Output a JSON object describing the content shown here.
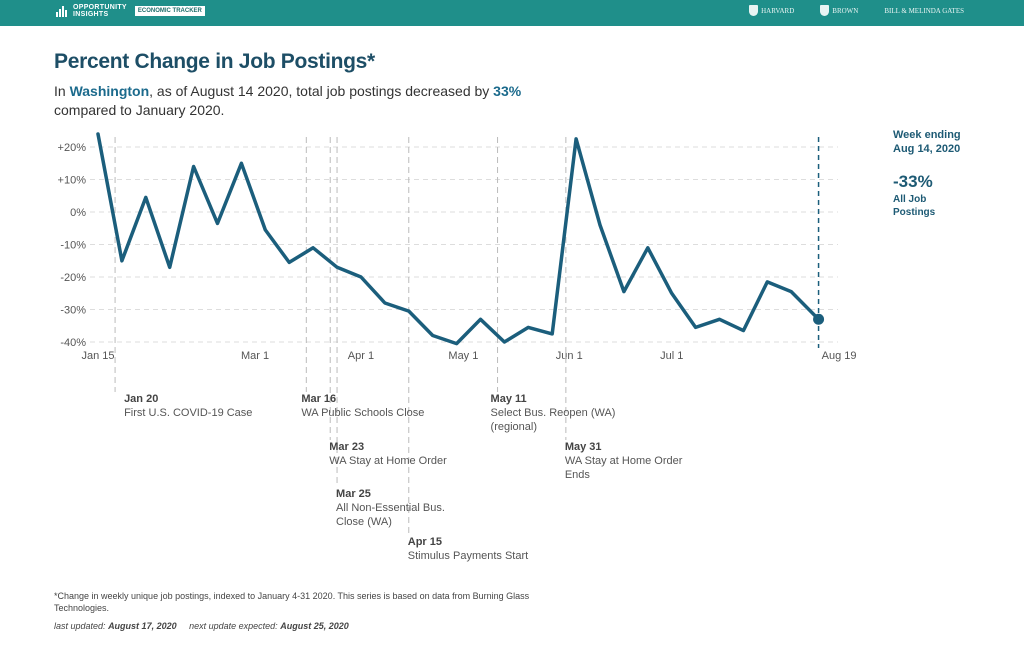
{
  "header": {
    "brand_line1": "OPPORTUNITY",
    "brand_line2": "INSIGHTS",
    "tracker_label": "ECONOMIC TRACKER",
    "partners": [
      "HARVARD",
      "BROWN",
      "BILL & MELINDA GATES"
    ]
  },
  "title": "Percent Change in Job Postings*",
  "subtitle": {
    "prefix": "In",
    "state": "Washington",
    "middle": ", as of August 14 2020, total job postings decreased by",
    "pct": "33%",
    "suffix": "compared to January 2020."
  },
  "side": {
    "date_label": "Week ending Aug 14, 2020",
    "value": "-33%",
    "value_label": "All Job Postings"
  },
  "colors": {
    "line": "#1b5e7c",
    "header": "#1f8f8a",
    "grid": "#dddddd",
    "event_line": "#bbbbbb"
  },
  "chart_data": {
    "type": "line",
    "title": "Percent Change in Job Postings*",
    "xlabel": "",
    "ylabel": "",
    "ylim": [
      -40,
      20
    ],
    "yticks": [
      20,
      10,
      0,
      -10,
      -20,
      -30,
      -40
    ],
    "ytick_labels": [
      "+20%",
      "+10%",
      "0%",
      "-10%",
      "-20%",
      "-30%",
      "-40%"
    ],
    "xtick_labels": [
      {
        "day": 0,
        "label": "Jan 15"
      },
      {
        "day": 46,
        "label": "Mar 1"
      },
      {
        "day": 77,
        "label": "Apr 1"
      },
      {
        "day": 107,
        "label": "May 1"
      },
      {
        "day": 138,
        "label": "Jun 1"
      },
      {
        "day": 168,
        "label": "Jul 1"
      },
      {
        "day": 217,
        "label": "Aug 19"
      }
    ],
    "series": [
      {
        "name": "All Job Postings",
        "x_days": [
          0,
          7,
          14,
          21,
          28,
          35,
          42,
          49,
          56,
          63,
          70,
          77,
          84,
          91,
          98,
          105,
          112,
          119,
          126,
          133,
          140,
          147,
          154,
          161,
          168,
          175,
          182,
          189,
          196,
          203,
          211
        ],
        "values": [
          24,
          -15,
          4.5,
          -17,
          14,
          -3.5,
          15,
          -5.5,
          -15.5,
          -11,
          -17,
          -20,
          -28,
          -30.5,
          -38,
          -40.5,
          -33,
          -40,
          -35.5,
          -37.5,
          22.5,
          -4,
          -24.5,
          -11,
          -25,
          -35.5,
          -33,
          -36.5,
          -21.5,
          -24.5,
          -33
        ]
      }
    ],
    "end_marker": {
      "day": 211,
      "value": -33
    },
    "events": [
      {
        "day": 5,
        "date": "Jan 20",
        "label": "First U.S. COVID-19 Case"
      },
      {
        "day": 61,
        "date": "Mar 16",
        "label": "WA Public Schools Close"
      },
      {
        "day": 68,
        "date": "Mar 23",
        "label": "WA Stay at Home Order"
      },
      {
        "day": 70,
        "date": "Mar 25",
        "label": "All Non-Essential Bus. Close (WA)"
      },
      {
        "day": 91,
        "date": "Apr 15",
        "label": "Stimulus Payments Start"
      },
      {
        "day": 117,
        "date": "May 11",
        "label": "Select Bus. Reopen (WA) (regional)"
      },
      {
        "day": 137,
        "date": "May 31",
        "label": "WA Stay at Home Order Ends"
      }
    ]
  },
  "footnote": "*Change in weekly unique job postings, indexed to January 4-31 2020. This series is based on data from Burning Glass Technologies.",
  "updated": {
    "last_label": "last updated:",
    "last_date": "August 17, 2020",
    "next_label": "next update expected:",
    "next_date": "August 25, 2020"
  }
}
